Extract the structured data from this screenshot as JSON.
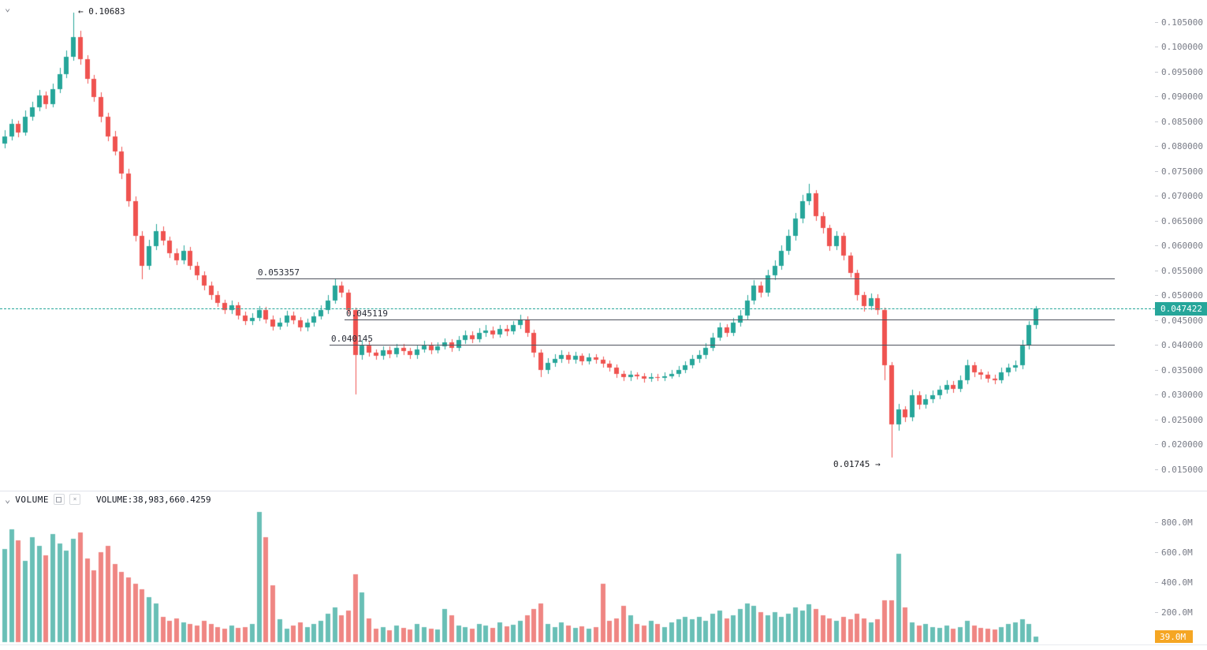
{
  "icons": {
    "chevron": "⌄",
    "maximize": "sq",
    "close": "×"
  },
  "annotations": {
    "high": "← 0.10683",
    "low": "0.01745 →"
  },
  "price_lines": [
    {
      "label": "0.053357",
      "price": 0.053357,
      "x_start": 325
    },
    {
      "label": "0.045119",
      "price": 0.045119,
      "x_start": 437
    },
    {
      "label": "0.040145",
      "price": 0.040145,
      "x_start": 418
    }
  ],
  "current_price": {
    "label": "0.047422",
    "value": 0.047422
  },
  "price_axis": {
    "labels": [
      "0.105000",
      "0.100000",
      "0.095000",
      "0.090000",
      "0.085000",
      "0.080000",
      "0.075000",
      "0.070000",
      "0.065000",
      "0.060000",
      "0.055000",
      "0.050000",
      "0.045000",
      "0.040000",
      "0.035000",
      "0.030000",
      "0.025000",
      "0.020000",
      "0.015000"
    ]
  },
  "volume_pane": {
    "title": "VOLUME",
    "value_label": "VOLUME:38,983,660.4259",
    "axis_labels": [
      {
        "label": "800.0M",
        "value": 800
      },
      {
        "label": "600.0M",
        "value": 600
      },
      {
        "label": "400.0M",
        "value": 400
      },
      {
        "label": "200.0M",
        "value": 200
      }
    ],
    "last_badge": "39.0M"
  },
  "colors": {
    "up": "#26a69a",
    "down": "#ef5350",
    "volume_up": "#69bfb6",
    "volume_down": "#ef8683",
    "current_price": "#26a69a",
    "volume_badge": "#f5a623",
    "axis_text": "#787b86",
    "line": "#50535e"
  },
  "chart_data": {
    "type": "candlestick",
    "title": "",
    "ylabel": "",
    "ylim": [
      0.015,
      0.105
    ],
    "volume_ylim_millions": [
      0,
      900
    ],
    "grid": false,
    "levels": [
      0.053357,
      0.045119,
      0.040145
    ],
    "peak": 0.10683,
    "trough": 0.01745,
    "last_price": 0.047422,
    "last_volume": "38,983,660.4259",
    "candles": [
      [
        0.0805,
        0.0832,
        0.0796,
        0.082
      ],
      [
        0.082,
        0.0854,
        0.0812,
        0.0845
      ],
      [
        0.0845,
        0.0851,
        0.0819,
        0.0828
      ],
      [
        0.0828,
        0.0872,
        0.0822,
        0.086
      ],
      [
        0.086,
        0.089,
        0.0851,
        0.0878
      ],
      [
        0.0878,
        0.0914,
        0.087,
        0.0902
      ],
      [
        0.0902,
        0.0911,
        0.0876,
        0.0885
      ],
      [
        0.0885,
        0.0926,
        0.0878,
        0.0915
      ],
      [
        0.0915,
        0.0958,
        0.0907,
        0.0945
      ],
      [
        0.0945,
        0.0993,
        0.0938,
        0.098
      ],
      [
        0.098,
        0.10683,
        0.0972,
        0.102
      ],
      [
        0.102,
        0.1032,
        0.0964,
        0.0975
      ],
      [
        0.0975,
        0.0984,
        0.0926,
        0.0935
      ],
      [
        0.0935,
        0.0944,
        0.089,
        0.09
      ],
      [
        0.09,
        0.0909,
        0.0849,
        0.086
      ],
      [
        0.086,
        0.0868,
        0.081,
        0.082
      ],
      [
        0.082,
        0.0831,
        0.0781,
        0.079
      ],
      [
        0.079,
        0.0799,
        0.0734,
        0.0745
      ],
      [
        0.0745,
        0.0754,
        0.0679,
        0.069
      ],
      [
        0.069,
        0.0699,
        0.0608,
        0.062
      ],
      [
        0.062,
        0.0629,
        0.0533,
        0.056
      ],
      [
        0.056,
        0.0612,
        0.0551,
        0.06
      ],
      [
        0.06,
        0.0643,
        0.0592,
        0.063
      ],
      [
        0.063,
        0.0639,
        0.0601,
        0.061
      ],
      [
        0.061,
        0.0618,
        0.0576,
        0.0585
      ],
      [
        0.0585,
        0.0594,
        0.0561,
        0.057
      ],
      [
        0.057,
        0.0601,
        0.0563,
        0.059
      ],
      [
        0.059,
        0.0598,
        0.0551,
        0.056
      ],
      [
        0.056,
        0.0568,
        0.0531,
        0.054
      ],
      [
        0.054,
        0.0549,
        0.0511,
        0.052
      ],
      [
        0.052,
        0.0528,
        0.0492,
        0.05
      ],
      [
        0.05,
        0.0508,
        0.0477,
        0.0485
      ],
      [
        0.0485,
        0.0492,
        0.0462,
        0.047
      ],
      [
        0.047,
        0.0489,
        0.0463,
        0.048
      ],
      [
        0.048,
        0.0487,
        0.0452,
        0.046
      ],
      [
        0.046,
        0.0468,
        0.044,
        0.0448
      ],
      [
        0.0448,
        0.0464,
        0.0441,
        0.0455
      ],
      [
        0.0455,
        0.0479,
        0.0448,
        0.047
      ],
      [
        0.047,
        0.0477,
        0.0444,
        0.0452
      ],
      [
        0.0452,
        0.0459,
        0.043,
        0.0438
      ],
      [
        0.0438,
        0.0454,
        0.0431,
        0.0445
      ],
      [
        0.0445,
        0.0469,
        0.0438,
        0.046
      ],
      [
        0.046,
        0.0467,
        0.0442,
        0.045
      ],
      [
        0.045,
        0.0457,
        0.0427,
        0.0435
      ],
      [
        0.0435,
        0.0453,
        0.0428,
        0.0445
      ],
      [
        0.0445,
        0.0466,
        0.0438,
        0.0458
      ],
      [
        0.0458,
        0.048,
        0.0451,
        0.047
      ],
      [
        0.047,
        0.0501,
        0.0463,
        0.049
      ],
      [
        0.049,
        0.0534,
        0.0483,
        0.052
      ],
      [
        0.052,
        0.0528,
        0.0496,
        0.0505
      ],
      [
        0.0505,
        0.0512,
        0.0461,
        0.047
      ],
      [
        0.047,
        0.0476,
        0.0301,
        0.038
      ],
      [
        0.038,
        0.0411,
        0.0371,
        0.04
      ],
      [
        0.04,
        0.0407,
        0.0377,
        0.0385
      ],
      [
        0.0385,
        0.0392,
        0.037,
        0.0378
      ],
      [
        0.0378,
        0.0398,
        0.0371,
        0.039
      ],
      [
        0.039,
        0.0397,
        0.0374,
        0.0382
      ],
      [
        0.0382,
        0.0403,
        0.0375,
        0.0395
      ],
      [
        0.0395,
        0.0402,
        0.038,
        0.0388
      ],
      [
        0.0388,
        0.0394,
        0.0372,
        0.038
      ],
      [
        0.038,
        0.04,
        0.0373,
        0.0392
      ],
      [
        0.0392,
        0.0409,
        0.0385,
        0.04
      ],
      [
        0.04,
        0.0406,
        0.0382,
        0.039
      ],
      [
        0.039,
        0.0406,
        0.0383,
        0.0398
      ],
      [
        0.0398,
        0.0414,
        0.0391,
        0.0405
      ],
      [
        0.0405,
        0.0412,
        0.0387,
        0.0395
      ],
      [
        0.0395,
        0.0419,
        0.0388,
        0.041
      ],
      [
        0.041,
        0.043,
        0.0403,
        0.042
      ],
      [
        0.042,
        0.0427,
        0.0404,
        0.0412
      ],
      [
        0.0412,
        0.0434,
        0.0405,
        0.0425
      ],
      [
        0.0425,
        0.044,
        0.0417,
        0.043
      ],
      [
        0.043,
        0.0437,
        0.0414,
        0.0422
      ],
      [
        0.0422,
        0.0441,
        0.0415,
        0.0432
      ],
      [
        0.0432,
        0.044,
        0.0419,
        0.0428
      ],
      [
        0.0428,
        0.0449,
        0.0421,
        0.044
      ],
      [
        0.044,
        0.0461,
        0.0433,
        0.0452
      ],
      [
        0.0452,
        0.0458,
        0.0416,
        0.0425
      ],
      [
        0.0425,
        0.0431,
        0.0376,
        0.0385
      ],
      [
        0.0385,
        0.0391,
        0.0335,
        0.035
      ],
      [
        0.035,
        0.0374,
        0.0342,
        0.0365
      ],
      [
        0.0365,
        0.0381,
        0.0357,
        0.0372
      ],
      [
        0.0372,
        0.0389,
        0.0364,
        0.038
      ],
      [
        0.038,
        0.0386,
        0.0362,
        0.037
      ],
      [
        0.037,
        0.0386,
        0.0363,
        0.0378
      ],
      [
        0.0378,
        0.0384,
        0.036,
        0.0368
      ],
      [
        0.0368,
        0.0383,
        0.0361,
        0.0375
      ],
      [
        0.0375,
        0.0382,
        0.0363,
        0.037
      ],
      [
        0.037,
        0.0377,
        0.0354,
        0.0362
      ],
      [
        0.0362,
        0.0369,
        0.0347,
        0.0355
      ],
      [
        0.0355,
        0.0361,
        0.0334,
        0.0342
      ],
      [
        0.0342,
        0.0348,
        0.0327,
        0.0335
      ],
      [
        0.0335,
        0.0348,
        0.0328,
        0.034
      ],
      [
        0.034,
        0.0346,
        0.0331,
        0.0338
      ],
      [
        0.0338,
        0.0344,
        0.0325,
        0.0332
      ],
      [
        0.0332,
        0.0343,
        0.0326,
        0.0336
      ],
      [
        0.0336,
        0.0342,
        0.0327,
        0.0334
      ],
      [
        0.0334,
        0.0345,
        0.0328,
        0.0338
      ],
      [
        0.0338,
        0.035,
        0.0332,
        0.0342
      ],
      [
        0.0342,
        0.0358,
        0.0335,
        0.035
      ],
      [
        0.035,
        0.0368,
        0.0343,
        0.036
      ],
      [
        0.036,
        0.038,
        0.0353,
        0.0372
      ],
      [
        0.0372,
        0.0389,
        0.0365,
        0.038
      ],
      [
        0.038,
        0.0404,
        0.0373,
        0.0395
      ],
      [
        0.0395,
        0.0424,
        0.0388,
        0.0415
      ],
      [
        0.0415,
        0.0445,
        0.0408,
        0.0435
      ],
      [
        0.0435,
        0.0442,
        0.0416,
        0.0425
      ],
      [
        0.0425,
        0.0455,
        0.0418,
        0.0445
      ],
      [
        0.0445,
        0.047,
        0.0438,
        0.046
      ],
      [
        0.046,
        0.05,
        0.0452,
        0.049
      ],
      [
        0.049,
        0.0531,
        0.0482,
        0.052
      ],
      [
        0.052,
        0.0527,
        0.0496,
        0.0505
      ],
      [
        0.0505,
        0.0551,
        0.0497,
        0.054
      ],
      [
        0.054,
        0.0571,
        0.0531,
        0.056
      ],
      [
        0.056,
        0.0601,
        0.0552,
        0.059
      ],
      [
        0.059,
        0.0632,
        0.0582,
        0.062
      ],
      [
        0.062,
        0.0666,
        0.0611,
        0.0655
      ],
      [
        0.0655,
        0.0702,
        0.0646,
        0.069
      ],
      [
        0.069,
        0.0724,
        0.0681,
        0.0705
      ],
      [
        0.0705,
        0.0712,
        0.065,
        0.066
      ],
      [
        0.066,
        0.0668,
        0.0625,
        0.0635
      ],
      [
        0.0635,
        0.0642,
        0.059,
        0.06
      ],
      [
        0.06,
        0.063,
        0.0592,
        0.062
      ],
      [
        0.062,
        0.0626,
        0.057,
        0.058
      ],
      [
        0.058,
        0.0586,
        0.0535,
        0.0545
      ],
      [
        0.0545,
        0.0551,
        0.049,
        0.05
      ],
      [
        0.05,
        0.0507,
        0.0468,
        0.0478
      ],
      [
        0.0478,
        0.0504,
        0.047,
        0.0495
      ],
      [
        0.0495,
        0.0502,
        0.0461,
        0.047
      ],
      [
        0.047,
        0.0476,
        0.033,
        0.036
      ],
      [
        0.036,
        0.0366,
        0.01745,
        0.024
      ],
      [
        0.024,
        0.0281,
        0.0228,
        0.027
      ],
      [
        0.027,
        0.0277,
        0.0245,
        0.0255
      ],
      [
        0.0255,
        0.031,
        0.0247,
        0.03
      ],
      [
        0.03,
        0.0307,
        0.0271,
        0.028
      ],
      [
        0.028,
        0.0301,
        0.0272,
        0.0292
      ],
      [
        0.0292,
        0.0309,
        0.0284,
        0.03
      ],
      [
        0.03,
        0.0319,
        0.0292,
        0.031
      ],
      [
        0.031,
        0.033,
        0.0302,
        0.032
      ],
      [
        0.032,
        0.0327,
        0.0304,
        0.0312
      ],
      [
        0.0312,
        0.0339,
        0.0305,
        0.033
      ],
      [
        0.033,
        0.037,
        0.0322,
        0.036
      ],
      [
        0.036,
        0.0366,
        0.0336,
        0.0345
      ],
      [
        0.0345,
        0.0352,
        0.0331,
        0.034
      ],
      [
        0.034,
        0.0347,
        0.0324,
        0.0332
      ],
      [
        0.0332,
        0.034,
        0.0322,
        0.033
      ],
      [
        0.033,
        0.0354,
        0.0323,
        0.0345
      ],
      [
        0.0345,
        0.0363,
        0.0337,
        0.0355
      ],
      [
        0.0355,
        0.0369,
        0.0347,
        0.036
      ],
      [
        0.036,
        0.041,
        0.0352,
        0.04
      ],
      [
        0.04,
        0.0449,
        0.0392,
        0.044
      ],
      [
        0.044,
        0.0478,
        0.0432,
        0.04742
      ]
    ],
    "volumes_millions": [
      620,
      750,
      680,
      540,
      700,
      640,
      580,
      720,
      660,
      610,
      690,
      730,
      560,
      480,
      600,
      640,
      520,
      470,
      430,
      390,
      350,
      300,
      260,
      170,
      140,
      160,
      130,
      120,
      110,
      140,
      120,
      100,
      90,
      110,
      95,
      100,
      120,
      870,
      700,
      380,
      150,
      90,
      110,
      130,
      100,
      120,
      140,
      190,
      230,
      180,
      210,
      450,
      330,
      160,
      90,
      100,
      80,
      110,
      95,
      85,
      120,
      100,
      90,
      85,
      220,
      180,
      110,
      100,
      90,
      120,
      110,
      95,
      130,
      105,
      115,
      140,
      180,
      220,
      260,
      120,
      100,
      130,
      110,
      95,
      105,
      90,
      100,
      390,
      140,
      160,
      240,
      180,
      120,
      110,
      140,
      120,
      100,
      130,
      150,
      170,
      150,
      170,
      140,
      190,
      210,
      160,
      180,
      220,
      260,
      240,
      200,
      180,
      200,
      170,
      190,
      230,
      210,
      250,
      220,
      180,
      160,
      140,
      170,
      150,
      190,
      160,
      130,
      150,
      280,
      280,
      590,
      230,
      130,
      110,
      120,
      100,
      95,
      110,
      90,
      100,
      140,
      110,
      95,
      90,
      85,
      100,
      120,
      130,
      150,
      120,
      38.98
    ]
  }
}
